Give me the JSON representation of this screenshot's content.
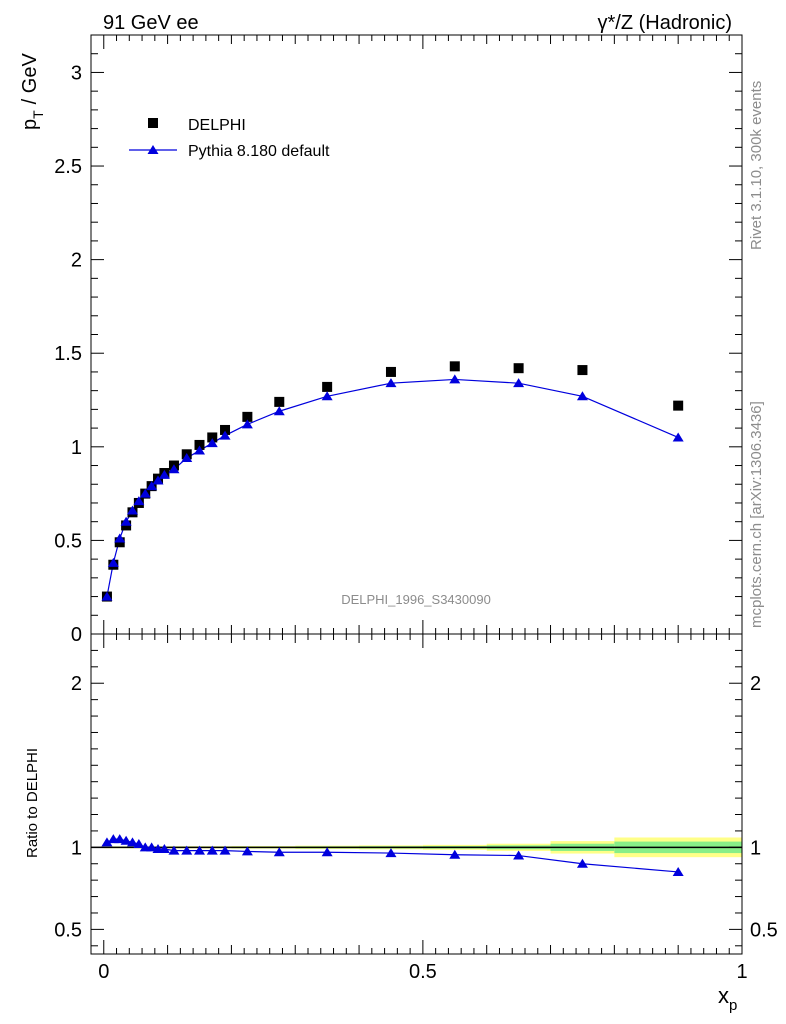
{
  "header": {
    "left": "91 GeV ee",
    "right": "γ*/Z (Hadronic)"
  },
  "side_text": {
    "rivet": "Rivet 3.1.10,  300k events",
    "site": "mcplots.cern.ch [arXiv:1306.3436]"
  },
  "watermark": "DELPHI_1996_S3430090",
  "colors": {
    "data": "#000000",
    "mc": "#0000dd",
    "band_outer": "#ffff88",
    "band_inner": "#88ee88"
  },
  "chart_data": [
    {
      "type": "scatter",
      "panel": "main",
      "ylabel": "p_T / GeV",
      "ylabel_main": "p",
      "ylabel_sub": "T",
      "ylabel_unit": "/ GeV",
      "xlim": [
        -0.02,
        1.0
      ],
      "ylim": [
        0,
        3.2
      ],
      "yticks": [
        0,
        0.5,
        1,
        1.5,
        2,
        2.5,
        3
      ],
      "ytick_labels": [
        "0",
        "0.5",
        "1",
        "1.5",
        "2",
        "2.5",
        "3"
      ],
      "legend": "top-left",
      "legend_entries": [
        {
          "name": "DELPHI",
          "marker": "square"
        },
        {
          "name": "Pythia 8.180 default",
          "marker": "triangle-line"
        }
      ],
      "series": [
        {
          "name": "DELPHI",
          "x": [
            0.005,
            0.015,
            0.025,
            0.035,
            0.045,
            0.055,
            0.065,
            0.075,
            0.085,
            0.095,
            0.11,
            0.13,
            0.15,
            0.17,
            0.19,
            0.225,
            0.275,
            0.35,
            0.45,
            0.55,
            0.65,
            0.75,
            0.9
          ],
          "values": [
            0.2,
            0.37,
            0.49,
            0.58,
            0.65,
            0.7,
            0.75,
            0.79,
            0.83,
            0.86,
            0.9,
            0.96,
            1.01,
            1.05,
            1.09,
            1.16,
            1.24,
            1.32,
            1.4,
            1.43,
            1.42,
            1.41,
            1.22
          ]
        },
        {
          "name": "Pythia 8.180 default",
          "x": [
            0.005,
            0.015,
            0.025,
            0.035,
            0.045,
            0.055,
            0.065,
            0.075,
            0.085,
            0.095,
            0.11,
            0.13,
            0.15,
            0.17,
            0.19,
            0.225,
            0.275,
            0.35,
            0.45,
            0.55,
            0.65,
            0.75,
            0.9
          ],
          "values": [
            0.2,
            0.38,
            0.51,
            0.6,
            0.66,
            0.71,
            0.75,
            0.79,
            0.82,
            0.85,
            0.88,
            0.94,
            0.98,
            1.02,
            1.06,
            1.12,
            1.19,
            1.27,
            1.34,
            1.36,
            1.34,
            1.27,
            1.05
          ]
        }
      ]
    },
    {
      "type": "line",
      "panel": "ratio",
      "ylabel": "Ratio to DELPHI",
      "xlabel": "x_p",
      "xlabel_main": "x",
      "xlabel_sub": "p",
      "xlim": [
        -0.02,
        1.0
      ],
      "ylim": [
        0.35,
        2.3
      ],
      "yticks": [
        0.5,
        1,
        2
      ],
      "ytick_labels": [
        "0.5",
        "1",
        "2"
      ],
      "xticks": [
        0,
        0.5,
        1
      ],
      "xtick_labels": [
        "0",
        "0.5",
        "1"
      ],
      "reference_line": 1,
      "uncertainty_band": {
        "x_edges": [
          0,
          0.1,
          0.2,
          0.3,
          0.4,
          0.5,
          0.6,
          0.7,
          0.8,
          1.0
        ],
        "inner": [
          0.004,
          0.004,
          0.005,
          0.006,
          0.007,
          0.008,
          0.012,
          0.022,
          0.035
        ],
        "outer": [
          0.006,
          0.007,
          0.008,
          0.01,
          0.012,
          0.015,
          0.022,
          0.038,
          0.06
        ]
      },
      "series": [
        {
          "name": "Pythia 8.180 default",
          "x": [
            0.005,
            0.015,
            0.025,
            0.035,
            0.045,
            0.055,
            0.065,
            0.075,
            0.085,
            0.095,
            0.11,
            0.13,
            0.15,
            0.17,
            0.19,
            0.225,
            0.275,
            0.35,
            0.45,
            0.55,
            0.65,
            0.75,
            0.9
          ],
          "values": [
            1.03,
            1.05,
            1.05,
            1.04,
            1.03,
            1.02,
            1.0,
            1.0,
            0.99,
            0.99,
            0.98,
            0.98,
            0.98,
            0.98,
            0.98,
            0.975,
            0.97,
            0.97,
            0.965,
            0.955,
            0.95,
            0.9,
            0.85
          ]
        }
      ]
    }
  ]
}
